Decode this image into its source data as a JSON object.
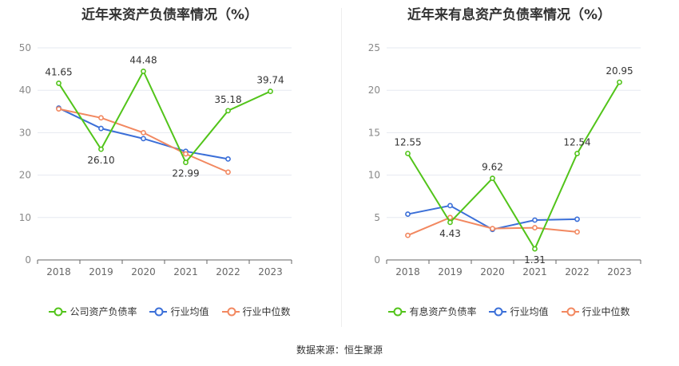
{
  "chart_data": [
    {
      "type": "line",
      "title": "近年来资产负债率情况（%）",
      "categories": [
        "2018",
        "2019",
        "2020",
        "2021",
        "2022",
        "2023"
      ],
      "ylim": [
        0,
        50
      ],
      "yticks": [
        0,
        10,
        20,
        30,
        40,
        50
      ],
      "grid": true,
      "legend_position": "bottom",
      "series": [
        {
          "name": "公司资产负债率",
          "color": "#52c41a",
          "values": [
            41.65,
            26.1,
            44.48,
            22.99,
            35.18,
            39.74
          ],
          "labels": [
            "41.65",
            "26.10",
            "44.48",
            "22.99",
            "35.18",
            "39.74"
          ]
        },
        {
          "name": "行业均值",
          "color": "#3b6fd8",
          "values": [
            35.8,
            31.0,
            28.6,
            25.6,
            23.8,
            null
          ]
        },
        {
          "name": "行业中位数",
          "color": "#f28860",
          "values": [
            35.6,
            33.5,
            30.0,
            25.0,
            20.7,
            null
          ]
        }
      ]
    },
    {
      "type": "line",
      "title": "近年来有息资产负债率情况（%）",
      "categories": [
        "2018",
        "2019",
        "2020",
        "2021",
        "2022",
        "2023"
      ],
      "ylim": [
        0,
        25
      ],
      "yticks": [
        0,
        5,
        10,
        15,
        20,
        25
      ],
      "grid": true,
      "legend_position": "bottom",
      "series": [
        {
          "name": "有息资产负债率",
          "color": "#52c41a",
          "values": [
            12.55,
            4.43,
            9.62,
            1.31,
            12.54,
            20.95
          ],
          "labels": [
            "12.55",
            "4.43",
            "9.62",
            "1.31",
            "12.54",
            "20.95"
          ]
        },
        {
          "name": "行业均值",
          "color": "#3b6fd8",
          "values": [
            5.4,
            6.4,
            3.6,
            4.7,
            4.8,
            null
          ]
        },
        {
          "name": "行业中位数",
          "color": "#f28860",
          "values": [
            2.9,
            5.0,
            3.7,
            3.8,
            3.3,
            null
          ]
        }
      ]
    }
  ],
  "footer": {
    "source": "数据来源：恒生聚源"
  }
}
